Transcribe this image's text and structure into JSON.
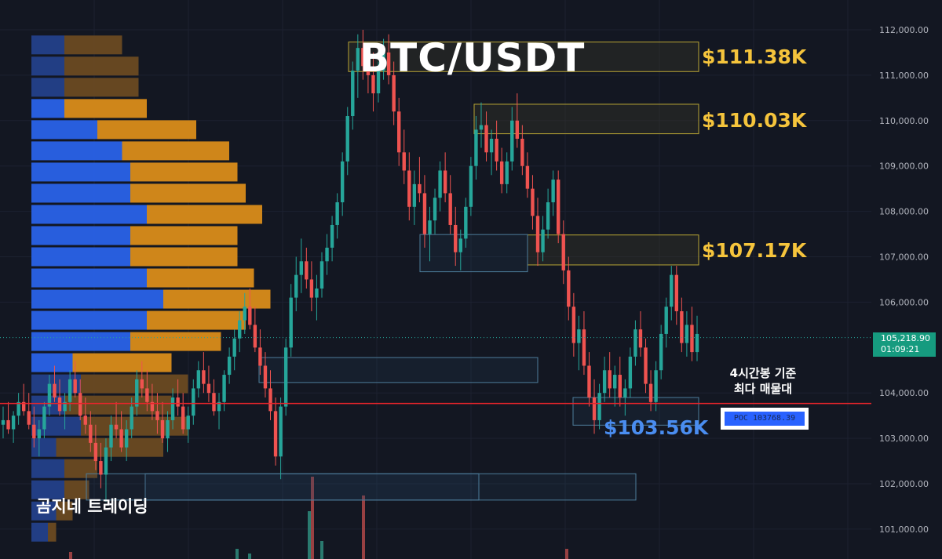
{
  "chart_data": {
    "type": "candlestick",
    "title": "BTC/USDT",
    "y_axis": {
      "ylim": [
        100700,
        112400
      ],
      "ticks": [
        "112,000.00",
        "111,000.00",
        "110,000.00",
        "109,000.00",
        "108,000.00",
        "107,000.00",
        "106,000.00",
        "104,000.00",
        "103,000.00",
        "102,000.00",
        "101,000.00"
      ],
      "tick_values": [
        112000,
        111000,
        110000,
        109000,
        108000,
        107000,
        106000,
        104000,
        103000,
        102000,
        101000
      ]
    },
    "current_price": {
      "price": "105,218.90",
      "countdown": "01:09:21",
      "value": 105218.9
    },
    "poc": {
      "label": "POC 103768.39",
      "value": 103768.39
    },
    "levels": [
      {
        "label": "$111.38K",
        "value": 111380,
        "color": "#f5c43c"
      },
      {
        "label": "$110.03K",
        "value": 110030,
        "color": "#f5c43c"
      },
      {
        "label": "$107.17K",
        "value": 107170,
        "color": "#f5c43c"
      },
      {
        "label": "$103.56K",
        "value": 103560,
        "color": "#4a8df0"
      }
    ],
    "annotation": [
      "4시간봉 기준",
      "최다 매물대"
    ],
    "watermark": "곰지네 트레이딩",
    "volume_profile": {
      "price_low": 100700,
      "price_high": 111900,
      "up_volume": [
        2,
        3,
        4,
        4,
        3,
        6,
        4,
        6,
        5,
        12,
        14,
        16,
        14,
        12,
        12,
        14,
        12,
        12,
        11,
        8,
        4,
        4,
        4,
        4
      ],
      "down_volume": [
        1,
        2,
        3,
        4,
        13,
        13,
        13,
        13,
        12,
        11,
        12,
        13,
        13,
        13,
        13,
        14,
        14,
        13,
        13,
        12,
        10,
        9,
        9,
        7
      ]
    },
    "zones": [
      {
        "kind": "supply",
        "from": 111080,
        "to": 111730
      },
      {
        "kind": "supply",
        "from": 109710,
        "to": 110360
      },
      {
        "kind": "supply",
        "from": 106820,
        "to": 107480
      },
      {
        "kind": "demand",
        "from": 106670,
        "to": 107490
      },
      {
        "kind": "demand",
        "from": 104230,
        "to": 104780
      },
      {
        "kind": "demand",
        "from": 103290,
        "to": 103900
      },
      {
        "kind": "demand",
        "from": 101640,
        "to": 102220
      }
    ],
    "candles_ohlc": [
      [
        103300,
        103700,
        103000,
        103400
      ],
      [
        103400,
        103800,
        103100,
        103200
      ],
      [
        103200,
        103600,
        102900,
        103500
      ],
      [
        103500,
        104000,
        103300,
        103800
      ],
      [
        103800,
        104200,
        103500,
        103600
      ],
      [
        103600,
        104000,
        103200,
        103300
      ],
      [
        103300,
        103700,
        102800,
        103000
      ],
      [
        103000,
        103400,
        102600,
        103200
      ],
      [
        103200,
        103800,
        103000,
        103700
      ],
      [
        103700,
        104400,
        103500,
        104200
      ],
      [
        104200,
        104600,
        103800,
        103900
      ],
      [
        103900,
        104300,
        103500,
        103600
      ],
      [
        103600,
        104000,
        103200,
        103800
      ],
      [
        103800,
        104500,
        103600,
        104300
      ],
      [
        104300,
        104700,
        103900,
        104000
      ],
      [
        104000,
        104300,
        103400,
        103500
      ],
      [
        103500,
        103900,
        103100,
        103300
      ],
      [
        103300,
        103600,
        102700,
        102900
      ],
      [
        102900,
        103300,
        102300,
        102500
      ],
      [
        102500,
        102900,
        101900,
        102200
      ],
      [
        102200,
        103000,
        101600,
        102800
      ],
      [
        102800,
        103500,
        102500,
        103300
      ],
      [
        103300,
        103800,
        103000,
        103200
      ],
      [
        103200,
        103600,
        102700,
        102800
      ],
      [
        102800,
        103400,
        102500,
        103200
      ],
      [
        103200,
        103900,
        103000,
        103700
      ],
      [
        103700,
        104500,
        103500,
        104300
      ],
      [
        104300,
        104700,
        103900,
        104100
      ],
      [
        104100,
        104500,
        103600,
        103800
      ],
      [
        103800,
        104200,
        103400,
        103600
      ],
      [
        103600,
        104000,
        103100,
        103400
      ],
      [
        103400,
        103800,
        102900,
        103000
      ],
      [
        103000,
        103600,
        102700,
        103400
      ],
      [
        103400,
        104100,
        103200,
        103900
      ],
      [
        103900,
        104300,
        103500,
        103700
      ],
      [
        103700,
        104000,
        103100,
        103200
      ],
      [
        103200,
        103700,
        102900,
        103500
      ],
      [
        103500,
        104300,
        103300,
        104100
      ],
      [
        104100,
        104700,
        103900,
        104500
      ],
      [
        104500,
        104900,
        104000,
        104200
      ],
      [
        104200,
        104600,
        103800,
        104000
      ],
      [
        104000,
        104300,
        103500,
        103600
      ],
      [
        103600,
        104000,
        103200,
        103800
      ],
      [
        103800,
        104500,
        103600,
        104400
      ],
      [
        104400,
        105000,
        104200,
        104800
      ],
      [
        104800,
        105400,
        104500,
        105200
      ],
      [
        105200,
        105800,
        104900,
        105600
      ],
      [
        105600,
        106200,
        105300,
        105900
      ],
      [
        105900,
        106300,
        105400,
        105500
      ],
      [
        105500,
        105900,
        104900,
        105000
      ],
      [
        105000,
        105400,
        104400,
        104600
      ],
      [
        104600,
        104900,
        103900,
        104100
      ],
      [
        104100,
        104500,
        103400,
        103600
      ],
      [
        103600,
        103900,
        102400,
        102600
      ],
      [
        102600,
        103900,
        102100,
        103700
      ],
      [
        103700,
        105200,
        103500,
        105000
      ],
      [
        105000,
        106400,
        104800,
        106100
      ],
      [
        106100,
        107000,
        105800,
        106600
      ],
      [
        106600,
        107400,
        106200,
        106900
      ],
      [
        106900,
        107200,
        106300,
        106500
      ],
      [
        106500,
        106900,
        105800,
        106100
      ],
      [
        106100,
        106600,
        105600,
        106300
      ],
      [
        106300,
        107100,
        106100,
        106900
      ],
      [
        106900,
        107500,
        106600,
        107200
      ],
      [
        107200,
        107900,
        106900,
        107700
      ],
      [
        107700,
        108400,
        107400,
        108200
      ],
      [
        108200,
        109300,
        107900,
        109100
      ],
      [
        109100,
        110300,
        108800,
        110100
      ],
      [
        110100,
        111300,
        109800,
        111100
      ],
      [
        111100,
        111900,
        110500,
        111600
      ],
      [
        111600,
        112000,
        110900,
        111200
      ],
      [
        111200,
        111700,
        110600,
        111000
      ],
      [
        111000,
        111500,
        110200,
        110600
      ],
      [
        110600,
        111300,
        110400,
        111100
      ],
      [
        111100,
        111800,
        110900,
        111500
      ],
      [
        111500,
        111900,
        110800,
        111000
      ],
      [
        111000,
        111300,
        109900,
        110200
      ],
      [
        110200,
        110500,
        109000,
        109300
      ],
      [
        109300,
        109800,
        108600,
        108900
      ],
      [
        108900,
        109300,
        107800,
        108100
      ],
      [
        108100,
        108900,
        107700,
        108600
      ],
      [
        108600,
        109200,
        108200,
        108400
      ],
      [
        108400,
        108800,
        107200,
        107500
      ],
      [
        107500,
        108100,
        106900,
        107800
      ],
      [
        107800,
        108500,
        107500,
        108300
      ],
      [
        108300,
        109100,
        108000,
        108900
      ],
      [
        108900,
        109300,
        108200,
        108400
      ],
      [
        108400,
        108800,
        107500,
        107700
      ],
      [
        107700,
        108100,
        106800,
        107100
      ],
      [
        107100,
        107600,
        106700,
        107400
      ],
      [
        107400,
        108300,
        107200,
        108100
      ],
      [
        108100,
        109200,
        107900,
        109000
      ],
      [
        109000,
        110100,
        108700,
        109800
      ],
      [
        109800,
        110400,
        109400,
        109900
      ],
      [
        109900,
        110200,
        109100,
        109300
      ],
      [
        109300,
        109800,
        108800,
        109600
      ],
      [
        109600,
        110000,
        108900,
        109100
      ],
      [
        109100,
        109400,
        108400,
        108600
      ],
      [
        108600,
        109300,
        108400,
        109100
      ],
      [
        109100,
        110300,
        108900,
        110000
      ],
      [
        110000,
        110600,
        109400,
        109600
      ],
      [
        109600,
        109900,
        108800,
        109000
      ],
      [
        109000,
        109300,
        108300,
        108500
      ],
      [
        108500,
        108800,
        107600,
        107900
      ],
      [
        107900,
        108300,
        106800,
        107100
      ],
      [
        107100,
        107900,
        106900,
        107600
      ],
      [
        107600,
        108500,
        107400,
        108200
      ],
      [
        108200,
        108900,
        107900,
        108700
      ],
      [
        108700,
        108900,
        107300,
        107500
      ],
      [
        107500,
        107800,
        106400,
        106700
      ],
      [
        106700,
        107000,
        105600,
        105900
      ],
      [
        105900,
        106200,
        104800,
        105100
      ],
      [
        105100,
        105700,
        104500,
        105400
      ],
      [
        105400,
        105800,
        104400,
        104600
      ],
      [
        104600,
        104900,
        103700,
        103900
      ],
      [
        103900,
        104300,
        103100,
        103400
      ],
      [
        103400,
        104200,
        103200,
        104000
      ],
      [
        104000,
        104800,
        103800,
        104500
      ],
      [
        104500,
        104900,
        103900,
        104100
      ],
      [
        104100,
        104600,
        103700,
        104400
      ],
      [
        104400,
        104800,
        103700,
        103900
      ],
      [
        103900,
        104300,
        103500,
        104100
      ],
      [
        104100,
        105000,
        103900,
        104800
      ],
      [
        104800,
        105600,
        104600,
        105400
      ],
      [
        105400,
        105800,
        104800,
        105000
      ],
      [
        105000,
        105200,
        104000,
        104200
      ],
      [
        104200,
        104500,
        103600,
        103800
      ],
      [
        103800,
        104700,
        103600,
        104500
      ],
      [
        104500,
        105500,
        104300,
        105300
      ],
      [
        105300,
        106100,
        105000,
        105900
      ],
      [
        105900,
        106800,
        105600,
        106600
      ],
      [
        106600,
        106800,
        105500,
        105800
      ],
      [
        105800,
        106100,
        104900,
        105100
      ],
      [
        105100,
        105800,
        104800,
        105500
      ],
      [
        105500,
        105900,
        104700,
        104900
      ],
      [
        104900,
        105700,
        104700,
        105300
      ]
    ]
  }
}
